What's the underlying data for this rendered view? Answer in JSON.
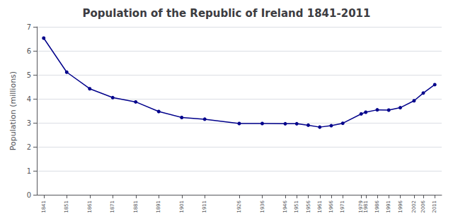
{
  "chart_data": {
    "type": "line",
    "title": "Population of the Republic of Ireland 1841-2011",
    "ylabel": "Population (millions)",
    "x": [
      1841,
      1851,
      1861,
      1871,
      1881,
      1891,
      1901,
      1911,
      1926,
      1936,
      1946,
      1951,
      1956,
      1961,
      1966,
      1971,
      1979,
      1981,
      1986,
      1991,
      1996,
      2002,
      2006,
      2011
    ],
    "values": [
      6.53,
      5.11,
      4.42,
      4.05,
      3.87,
      3.47,
      3.22,
      3.15,
      2.97,
      2.97,
      2.96,
      2.96,
      2.9,
      2.82,
      2.88,
      2.98,
      3.37,
      3.44,
      3.54,
      3.53,
      3.63,
      3.92,
      4.24,
      4.59
    ],
    "xlim": [
      1838,
      2014
    ],
    "xticks": [
      1841,
      1851,
      1861,
      1871,
      1881,
      1891,
      1901,
      1911,
      1926,
      1936,
      1946,
      1951,
      1956,
      1961,
      1966,
      1971,
      1979,
      1981,
      1986,
      1991,
      1996,
      2002,
      2006,
      2011
    ],
    "ylim": [
      0,
      7
    ],
    "yticks": [
      0,
      1,
      2,
      3,
      4,
      5,
      6,
      7
    ],
    "color": "#00008B",
    "marker": "circle",
    "grid": true
  }
}
